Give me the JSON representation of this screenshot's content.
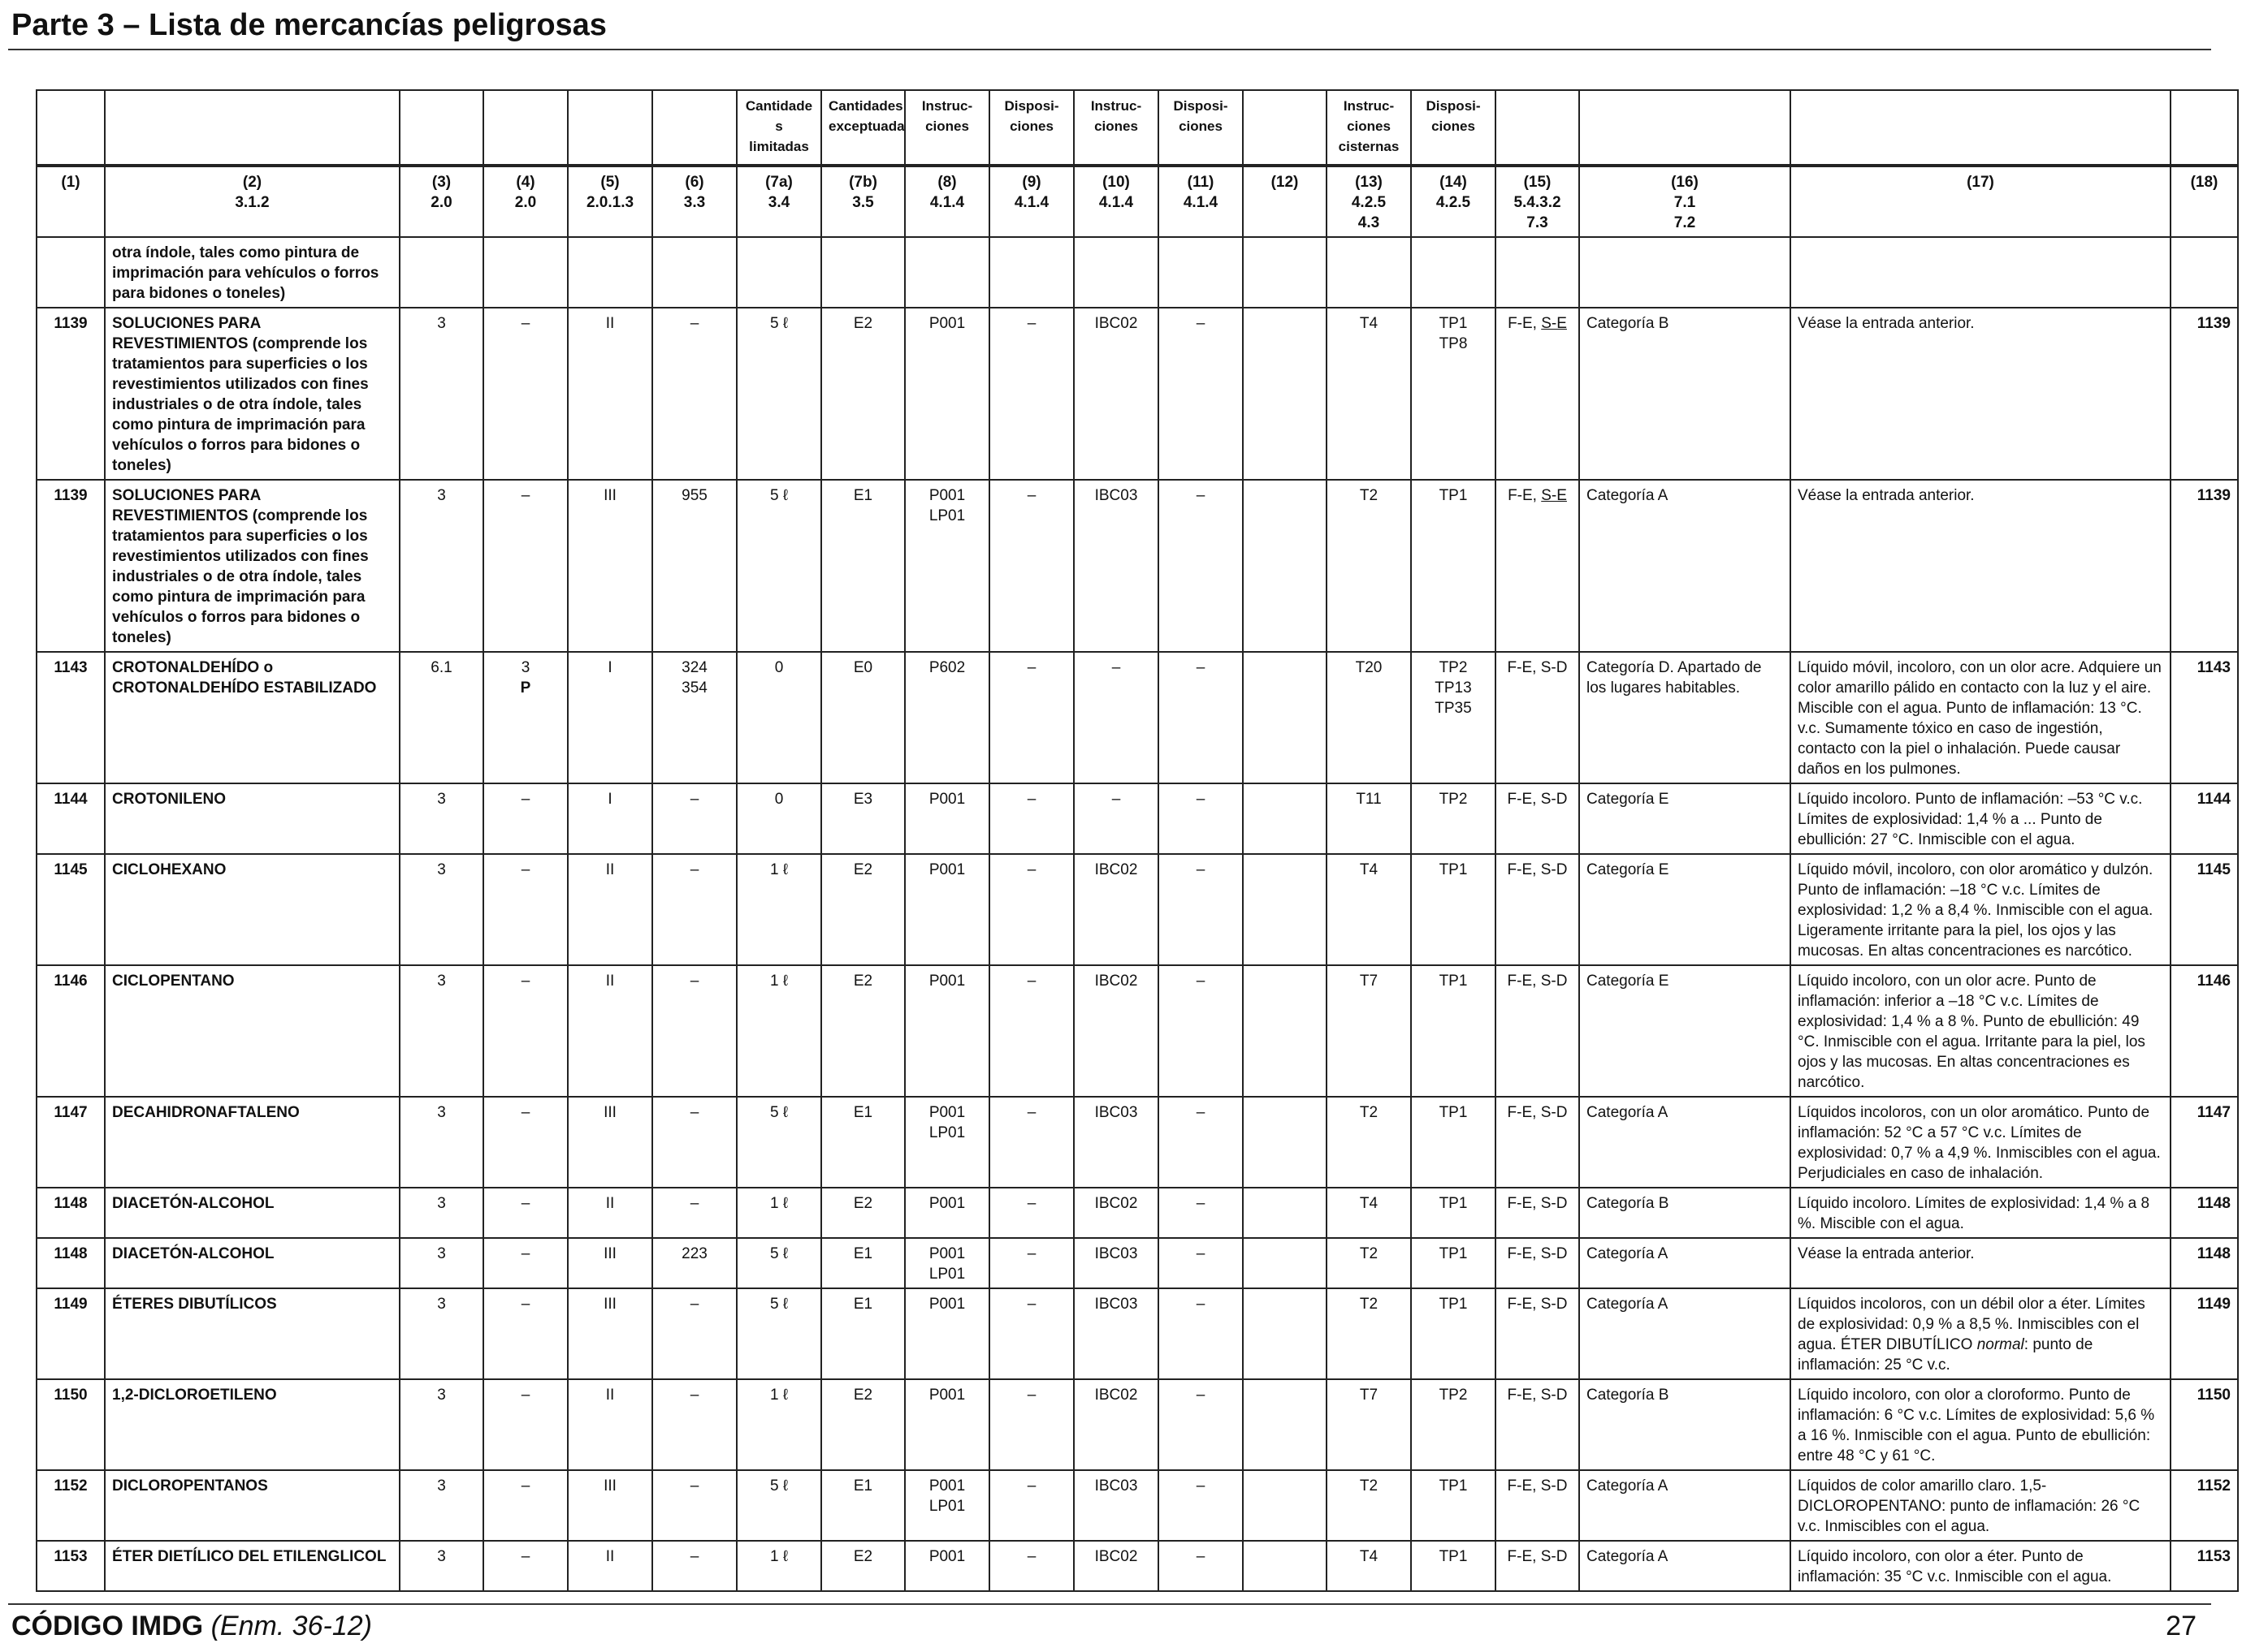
{
  "page": {
    "title": "Parte 3 – Lista de mercancías peligrosas"
  },
  "header_top": [
    "",
    "",
    "",
    "",
    "",
    "",
    "Cantidade s limitadas",
    "Cantidades exceptuadas",
    "Instruc- ciones",
    "Disposi- ciones",
    "Instruc- ciones",
    "Disposi- ciones",
    "",
    "Instruc- ciones cisternas",
    "Disposi- ciones",
    "",
    "",
    "",
    ""
  ],
  "header_ref": [
    "(1)",
    "(2)\n3.1.2",
    "(3)\n2.0",
    "(4)\n2.0",
    "(5)\n2.0.1.3",
    "(6)\n3.3",
    "(7a)\n3.4",
    "(7b)\n3.5",
    "(8)\n4.1.4",
    "(9)\n4.1.4",
    "(10)\n4.1.4",
    "(11)\n4.1.4",
    "(12)",
    "(13)\n4.2.5\n4.3",
    "(14)\n4.2.5",
    "(15)\n5.4.3.2\n7.3",
    "(16)\n7.1\n7.2",
    "(17)",
    "(18)"
  ],
  "rows": [
    {
      "un": "",
      "name": "otra índole, tales como pintura de imprimación para vehículos o forros para bidones o toneles)",
      "cls": "",
      "sub": "",
      "pg": "",
      "sp": "",
      "lq": "",
      "eq": "",
      "pi": "",
      "pp": "",
      "ibc": "",
      "ibcp": "",
      "c12": "",
      "tank": "",
      "tankp": "",
      "ems": "",
      "ems_u": "",
      "stow": "",
      "props": "",
      "un2": ""
    },
    {
      "un": "1139",
      "name": "SOLUCIONES PARA REVESTIMIENTOS (comprende los tratamientos para superficies o los revestimientos utilizados con fines industriales o de otra índole, tales como pintura de imprimación para vehículos o forros para bidones o toneles)",
      "cls": "3",
      "sub": "–",
      "pg": "II",
      "sp": "–",
      "lq": "5 ℓ",
      "eq": "E2",
      "pi": "P001",
      "pp": "–",
      "ibc": "IBC02",
      "ibcp": "–",
      "c12": "",
      "tank": "T4",
      "tankp": "TP1\nTP8",
      "ems": "F-E, ",
      "ems_u": "S-E",
      "stow": "Categoría B",
      "props": "Véase la entrada anterior.",
      "un2": "1139"
    },
    {
      "un": "1139",
      "name": "SOLUCIONES PARA REVESTIMIENTOS (comprende los tratamientos para superficies o los revestimientos utilizados con fines industriales o de otra índole, tales como pintura de imprimación para vehículos o forros para bidones o toneles)",
      "cls": "3",
      "sub": "–",
      "pg": "III",
      "sp": "955",
      "lq": "5 ℓ",
      "eq": "E1",
      "pi": "P001\nLP01",
      "pp": "–",
      "ibc": "IBC03",
      "ibcp": "–",
      "c12": "",
      "tank": "T2",
      "tankp": "TP1",
      "ems": "F-E, ",
      "ems_u": "S-E",
      "stow": "Categoría A",
      "props": "Véase la entrada anterior.",
      "un2": "1139"
    },
    {
      "un": "1143",
      "name": "CROTONALDEHÍDO o CROTONALDEHÍDO ESTABILIZADO",
      "cls": "6.1",
      "sub": "3\nP",
      "pg": "I",
      "sp": "324\n354",
      "lq": "0",
      "eq": "E0",
      "pi": "P602",
      "pp": "–",
      "ibc": "–",
      "ibcp": "–",
      "c12": "",
      "tank": "T20",
      "tankp": "TP2\nTP13\nTP35",
      "ems": "F-E, S-D",
      "ems_u": "",
      "stow": "Categoría D. Apartado de los lugares habitables.",
      "props": "Líquido móvil, incoloro, con un olor acre. Adquiere un color amarillo pálido en contacto con la luz y el aire. Miscible con el agua. Punto de inflamación: 13 °C. v.c. Sumamente tóxico en caso de ingestión, contacto con la piel o inhalación. Puede causar daños en los pulmones.",
      "un2": "1143"
    },
    {
      "un": "1144",
      "name": "CROTONILENO",
      "cls": "3",
      "sub": "–",
      "pg": "I",
      "sp": "–",
      "lq": "0",
      "eq": "E3",
      "pi": "P001",
      "pp": "–",
      "ibc": "–",
      "ibcp": "–",
      "c12": "",
      "tank": "T11",
      "tankp": "TP2",
      "ems": "F-E, S-D",
      "ems_u": "",
      "stow": "Categoría E",
      "props": "Líquido incoloro. Punto de inflamación: –53 °C v.c. Límites de explosividad: 1,4 % a ... Punto de ebullición: 27 °C. Inmiscible con el agua.",
      "un2": "1144"
    },
    {
      "un": "1145",
      "name": "CICLOHEXANO",
      "cls": "3",
      "sub": "–",
      "pg": "II",
      "sp": "–",
      "lq": "1 ℓ",
      "eq": "E2",
      "pi": "P001",
      "pp": "–",
      "ibc": "IBC02",
      "ibcp": "–",
      "c12": "",
      "tank": "T4",
      "tankp": "TP1",
      "ems": "F-E, S-D",
      "ems_u": "",
      "stow": "Categoría E",
      "props": "Líquido móvil, incoloro, con olor aromático y dulzón. Punto de inflamación: –18 °C v.c. Límites de explosividad: 1,2 % a 8,4 %. Inmiscible con el agua. Ligeramente irritante para la piel, los ojos y las mucosas. En altas concentraciones es narcótico.",
      "un2": "1145"
    },
    {
      "un": "1146",
      "name": "CICLOPENTANO",
      "cls": "3",
      "sub": "–",
      "pg": "II",
      "sp": "–",
      "lq": "1 ℓ",
      "eq": "E2",
      "pi": "P001",
      "pp": "–",
      "ibc": "IBC02",
      "ibcp": "–",
      "c12": "",
      "tank": "T7",
      "tankp": "TP1",
      "ems": "F-E, S-D",
      "ems_u": "",
      "stow": "Categoría E",
      "props": "Líquido incoloro, con un olor acre. Punto de inflamación: inferior a –18 °C v.c. Límites de explosividad: 1,4 % a 8 %. Punto de ebullición: 49 °C. Inmiscible con el agua. Irritante para la piel, los ojos y las mucosas. En altas concentraciones es narcótico.",
      "un2": "1146"
    },
    {
      "un": "1147",
      "name": "DECAHIDRONAFTALENO",
      "cls": "3",
      "sub": "–",
      "pg": "III",
      "sp": "–",
      "lq": "5 ℓ",
      "eq": "E1",
      "pi": "P001\nLP01",
      "pp": "–",
      "ibc": "IBC03",
      "ibcp": "–",
      "c12": "",
      "tank": "T2",
      "tankp": "TP1",
      "ems": "F-E, S-D",
      "ems_u": "",
      "stow": "Categoría A",
      "props": "Líquidos incoloros, con un olor aromático. Punto de inflamación: 52 °C a 57 °C v.c. Límites de explosividad: 0,7 % a 4,9 %. Inmiscibles con el agua. Perjudiciales en caso de inhalación.",
      "un2": "1147"
    },
    {
      "un": "1148",
      "name": "DIACETÓN-ALCOHOL",
      "cls": "3",
      "sub": "–",
      "pg": "II",
      "sp": "–",
      "lq": "1 ℓ",
      "eq": "E2",
      "pi": "P001",
      "pp": "–",
      "ibc": "IBC02",
      "ibcp": "–",
      "c12": "",
      "tank": "T4",
      "tankp": "TP1",
      "ems": "F-E, S-D",
      "ems_u": "",
      "stow": "Categoría B",
      "props": "Líquido incoloro. Límites de explosividad: 1,4 % a 8 %. Miscible con el agua.",
      "un2": "1148"
    },
    {
      "un": "1148",
      "name": "DIACETÓN-ALCOHOL",
      "cls": "3",
      "sub": "–",
      "pg": "III",
      "sp": "223",
      "lq": "5 ℓ",
      "eq": "E1",
      "pi": "P001\nLP01",
      "pp": "–",
      "ibc": "IBC03",
      "ibcp": "–",
      "c12": "",
      "tank": "T2",
      "tankp": "TP1",
      "ems": "F-E, S-D",
      "ems_u": "",
      "stow": "Categoría A",
      "props": "Véase la entrada anterior.",
      "un2": "1148"
    },
    {
      "un": "1149",
      "name": "ÉTERES DIBUTÍLICOS",
      "cls": "3",
      "sub": "–",
      "pg": "III",
      "sp": "–",
      "lq": "5 ℓ",
      "eq": "E1",
      "pi": "P001",
      "pp": "–",
      "ibc": "IBC03",
      "ibcp": "–",
      "c12": "",
      "tank": "T2",
      "tankp": "TP1",
      "ems": "F-E, S-D",
      "ems_u": "",
      "stow": "Categoría A",
      "props": "Líquidos incoloros, con un débil olor a éter. Límites de explosividad: 0,9 % a 8,5 %. Inmiscibles con el agua. ÉTER DIBUTÍLICO normal: punto de inflamación: 25 °C v.c.",
      "un2": "1149"
    },
    {
      "un": "1150",
      "name": "1,2-DICLOROETILENO",
      "cls": "3",
      "sub": "–",
      "pg": "II",
      "sp": "–",
      "lq": "1 ℓ",
      "eq": "E2",
      "pi": "P001",
      "pp": "–",
      "ibc": "IBC02",
      "ibcp": "–",
      "c12": "",
      "tank": "T7",
      "tankp": "TP2",
      "ems": "F-E, S-D",
      "ems_u": "",
      "stow": "Categoría B",
      "props": "Líquido incoloro, con olor a cloroformo. Punto de inflamación: 6 °C v.c. Límites de explosividad: 5,6 % a 16 %. Inmiscible con el agua. Punto de ebullición: entre 48 °C y 61 °C.",
      "un2": "1150"
    },
    {
      "un": "1152",
      "name": "DICLOROPENTANOS",
      "cls": "3",
      "sub": "–",
      "pg": "III",
      "sp": "–",
      "lq": "5 ℓ",
      "eq": "E1",
      "pi": "P001\nLP01",
      "pp": "–",
      "ibc": "IBC03",
      "ibcp": "–",
      "c12": "",
      "tank": "T2",
      "tankp": "TP1",
      "ems": "F-E, S-D",
      "ems_u": "",
      "stow": "Categoría A",
      "props": "Líquidos de color amarillo claro. 1,5-DICLOROPENTANO: punto de inflamación: 26 °C v.c. Inmiscibles con el agua.",
      "un2": "1152"
    },
    {
      "un": "1153",
      "name": "ÉTER DIETÍLICO DEL ETILENGLICOL",
      "cls": "3",
      "sub": "–",
      "pg": "II",
      "sp": "–",
      "lq": "1 ℓ",
      "eq": "E2",
      "pi": "P001",
      "pp": "–",
      "ibc": "IBC02",
      "ibcp": "–",
      "c12": "",
      "tank": "T4",
      "tankp": "TP1",
      "ems": "F-E, S-D",
      "ems_u": "",
      "stow": "Categoría A",
      "props": "Líquido incoloro, con olor a éter. Punto de inflamación: 35 °C v.c. Inmiscible con el agua.",
      "un2": "1153"
    }
  ],
  "footer": {
    "code": "CÓDIGO IMDG",
    "edition": "(Enm. 36-12)",
    "page_number": "27"
  }
}
